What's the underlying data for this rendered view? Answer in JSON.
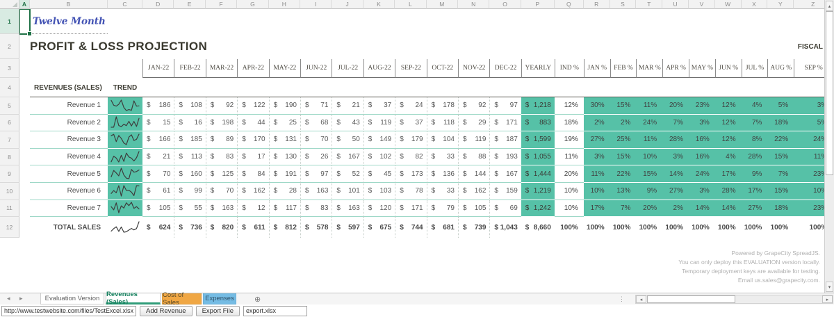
{
  "colors": {
    "accent_teal": "#56C1A7",
    "row_line_teal": "#9ED8C7",
    "selection_green": "#1E7145",
    "active_tab_green": "#15805E",
    "active_tab_underline": "#2F9C78",
    "tab_orange": "#F0A744",
    "tab_blue": "#75BCE4",
    "title_dark": "#3A392F",
    "sheet_title_blue": "#4353B4"
  },
  "columns": {
    "letters": [
      "A",
      "B",
      "C",
      "D",
      "E",
      "F",
      "G",
      "H",
      "I",
      "J",
      "K",
      "L",
      "M",
      "N",
      "O",
      "P",
      "Q",
      "R",
      "S",
      "T",
      "U",
      "V",
      "W",
      "X",
      "Y",
      "Z"
    ]
  },
  "rows": {
    "numbers": [
      "1",
      "2",
      "3",
      "4",
      "5",
      "6",
      "7",
      "8",
      "9",
      "10",
      "11",
      "12"
    ]
  },
  "titles": {
    "sheet_label": "Twelve Month",
    "report_title": "PROFIT & LOSS PROJECTION",
    "fiscal_label": "FISCAL"
  },
  "table": {
    "month_headers": [
      "JAN-22",
      "FEB-22",
      "MAR-22",
      "APR-22",
      "MAY-22",
      "JUN-22",
      "JUL-22",
      "AUG-22",
      "SEP-22",
      "OCT-22",
      "NOV-22",
      "DEC-22"
    ],
    "yearly_header": "YEARLY",
    "ind_header": "IND %",
    "pct_headers": [
      "JAN %",
      "FEB %",
      "MAR %",
      "APR %",
      "MAY %",
      "JUN %",
      "JUL %",
      "AUG %",
      "SEP %"
    ],
    "section_header": "REVENUES (SALES)",
    "trend_header": "TREND",
    "currency": "$",
    "revenues": [
      {
        "label": "Revenue 1",
        "monthly": [
          186,
          108,
          92,
          122,
          190,
          71,
          21,
          37,
          24,
          178,
          92,
          97
        ],
        "yearly": 1218,
        "ind_pct": 12,
        "month_pcts": [
          30,
          15,
          11,
          20,
          23,
          12,
          4,
          5,
          3
        ]
      },
      {
        "label": "Revenue 2",
        "monthly": [
          15,
          16,
          198,
          44,
          25,
          68,
          43,
          119,
          37,
          118,
          29,
          171
        ],
        "yearly": 883,
        "ind_pct": 18,
        "month_pcts": [
          2,
          2,
          24,
          7,
          3,
          12,
          7,
          18,
          5
        ]
      },
      {
        "label": "Revenue 3",
        "monthly": [
          166,
          185,
          89,
          170,
          131,
          70,
          50,
          149,
          179,
          104,
          119,
          187
        ],
        "yearly": 1599,
        "ind_pct": 19,
        "month_pcts": [
          27,
          25,
          11,
          28,
          16,
          12,
          8,
          22,
          24
        ]
      },
      {
        "label": "Revenue 4",
        "monthly": [
          21,
          113,
          83,
          17,
          130,
          26,
          167,
          102,
          82,
          33,
          88,
          193
        ],
        "yearly": 1055,
        "ind_pct": 11,
        "month_pcts": [
          3,
          15,
          10,
          3,
          16,
          4,
          28,
          15,
          11
        ]
      },
      {
        "label": "Revenue 5",
        "monthly": [
          70,
          160,
          125,
          84,
          191,
          97,
          52,
          45,
          173,
          136,
          144,
          167
        ],
        "yearly": 1444,
        "ind_pct": 20,
        "month_pcts": [
          11,
          22,
          15,
          14,
          24,
          17,
          9,
          7,
          23
        ]
      },
      {
        "label": "Revenue 6",
        "monthly": [
          61,
          99,
          70,
          162,
          28,
          163,
          101,
          103,
          78,
          33,
          162,
          159
        ],
        "yearly": 1219,
        "ind_pct": 10,
        "month_pcts": [
          10,
          13,
          9,
          27,
          3,
          28,
          17,
          15,
          10
        ]
      },
      {
        "label": "Revenue 7",
        "monthly": [
          105,
          55,
          163,
          12,
          117,
          83,
          163,
          120,
          171,
          79,
          105,
          69
        ],
        "yearly": 1242,
        "ind_pct": 10,
        "month_pcts": [
          17,
          7,
          20,
          2,
          14,
          14,
          27,
          18,
          23
        ]
      }
    ],
    "total": {
      "label": "TOTAL SALES",
      "monthly": [
        624,
        736,
        820,
        611,
        812,
        578,
        597,
        675,
        744,
        681,
        739,
        1043
      ],
      "yearly": 8660,
      "ind_pct": 100,
      "month_pcts": [
        100,
        100,
        100,
        100,
        100,
        100,
        100,
        100,
        100
      ]
    }
  },
  "watermark": {
    "lines": [
      "Powered by GrapeCity SpreadJS.",
      "You can only deploy this EVALUATION version locally.",
      "Temporary deployment keys are available for testing.",
      "Email us.sales@grapecity.com."
    ]
  },
  "tabs": {
    "items": [
      {
        "label": "Evaluation Version",
        "style": "plain"
      },
      {
        "label": "Revenues (Sales)",
        "style": "active"
      },
      {
        "label": "Cost of Sales",
        "style": "orange"
      },
      {
        "label": "Expenses",
        "style": "blue"
      }
    ],
    "add_label": "⊕"
  },
  "toolbar": {
    "url_value": "http://www.testwebsite.com/files/TestExcel.xlsx",
    "add_revenue_label": "Add Revenue",
    "export_label": "Export File",
    "filename_value": "export.xlsx"
  }
}
